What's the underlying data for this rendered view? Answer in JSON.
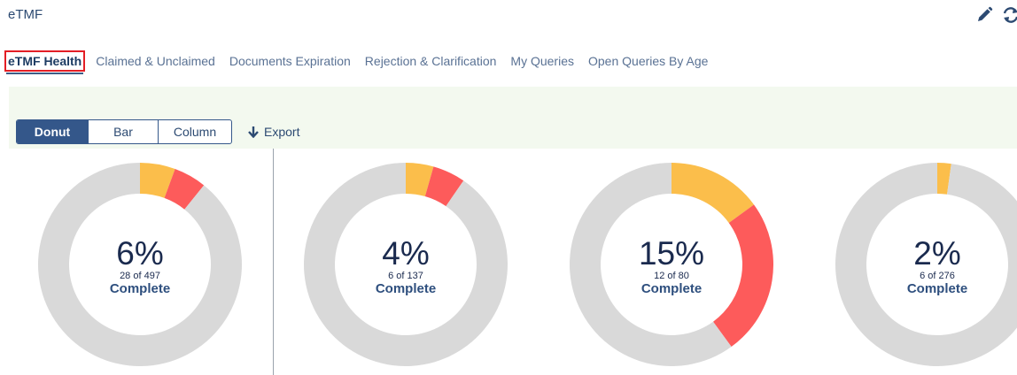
{
  "app": {
    "title": "eTMF"
  },
  "tabs": [
    {
      "label": "eTMF Health",
      "active": true
    },
    {
      "label": "Claimed & Unclaimed",
      "active": false
    },
    {
      "label": "Documents Expiration",
      "active": false
    },
    {
      "label": "Rejection & Clarification",
      "active": false
    },
    {
      "label": "My Queries",
      "active": false
    },
    {
      "label": "Open Queries By Age",
      "active": false
    }
  ],
  "chart_type_toggle": {
    "options": [
      "Donut",
      "Bar",
      "Column"
    ],
    "selected": "Donut"
  },
  "export_label": "Export",
  "icons": {
    "edit": "pencil-icon",
    "refresh": "refresh-icon",
    "export": "arrow-down-icon"
  },
  "colors": {
    "complete": "#fbbe4b",
    "rejected": "#fd5b5b",
    "remaining": "#d9d9d9",
    "accent": "#34578a",
    "active_outline": "#e31e25"
  },
  "chart_data": {
    "type": "pie",
    "variant": "donut",
    "charts": [
      {
        "percent_label": "6%",
        "count_label": "28 of 497",
        "status_label": "Complete",
        "slices": [
          0.056,
          0.052,
          0.892
        ]
      },
      {
        "percent_label": "4%",
        "count_label": "6 of 137",
        "status_label": "Complete",
        "slices": [
          0.044,
          0.052,
          0.904
        ]
      },
      {
        "percent_label": "15%",
        "count_label": "12 of 80",
        "status_label": "Complete",
        "slices": [
          0.15,
          0.25,
          0.6
        ]
      },
      {
        "percent_label": "2%",
        "count_label": "6 of 276",
        "status_label": "Complete",
        "slices": [
          0.022,
          0.0,
          0.978
        ]
      }
    ]
  }
}
